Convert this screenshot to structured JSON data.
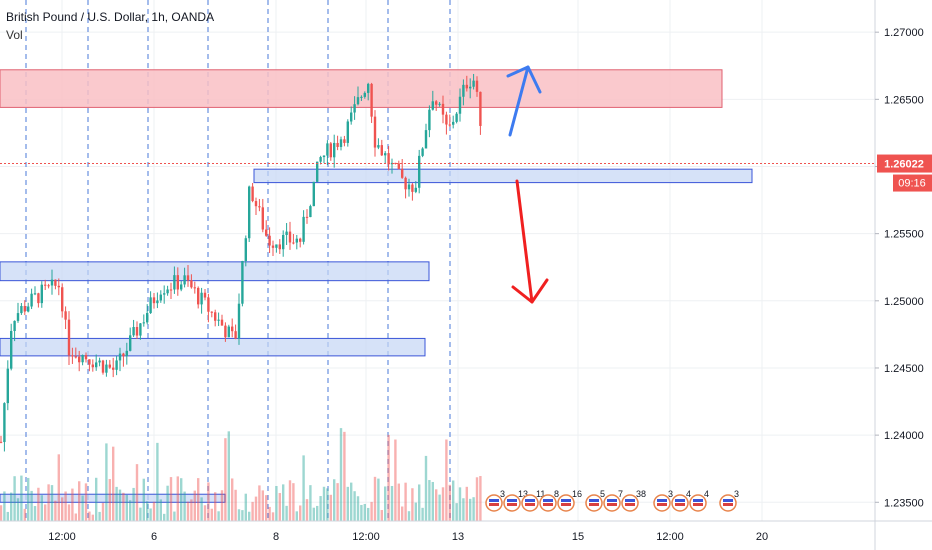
{
  "header": {
    "symbol_title": "British Pound / U.S. Dollar, 1h, OANDA",
    "volume_label": "Vol"
  },
  "price_axis": {
    "current_price": "1.26022",
    "countdown": "09:16"
  },
  "colors": {
    "up": "#26a69a",
    "down": "#ef5350",
    "price_line": "#ef5350",
    "resistance_zone": "#f9c0c4",
    "support_zone": "#c5d5f5",
    "arrow_up": "#3d7bf0",
    "arrow_down": "#f02020"
  },
  "icons": [
    "event-flag-icon"
  ],
  "chart_data": {
    "type": "candlestick",
    "title": "British Pound / U.S. Dollar, 1h, OANDA",
    "ylim": [
      1.2345,
      1.2718
    ],
    "y_ticks": [
      "1.27000",
      "1.26500",
      "1.26000",
      "1.25500",
      "1.25000",
      "1.24500",
      "1.24000",
      "1.23500"
    ],
    "x_ticks": [
      "12:00",
      "6",
      "8",
      "12:00",
      "13",
      "15",
      "12:00",
      "20"
    ],
    "current_price": 1.26022,
    "event_labels": [
      "3",
      "13",
      "11",
      "8",
      "16",
      "5",
      "7",
      "38",
      "3",
      "4",
      "4",
      "3"
    ],
    "zones": [
      {
        "type": "resistance",
        "top": 1.2672,
        "bottom": 1.2644
      },
      {
        "type": "support",
        "top": 1.2598,
        "bottom": 1.2588
      },
      {
        "type": "support",
        "top": 1.2529,
        "bottom": 1.2515
      },
      {
        "type": "support",
        "top": 1.2472,
        "bottom": 1.2459
      },
      {
        "type": "support",
        "top": 1.2356,
        "bottom": 1.235
      }
    ],
    "scenarios": [
      {
        "direction": "up",
        "label": ""
      },
      {
        "direction": "down",
        "label": ""
      }
    ],
    "grid": true,
    "legend": "none"
  }
}
